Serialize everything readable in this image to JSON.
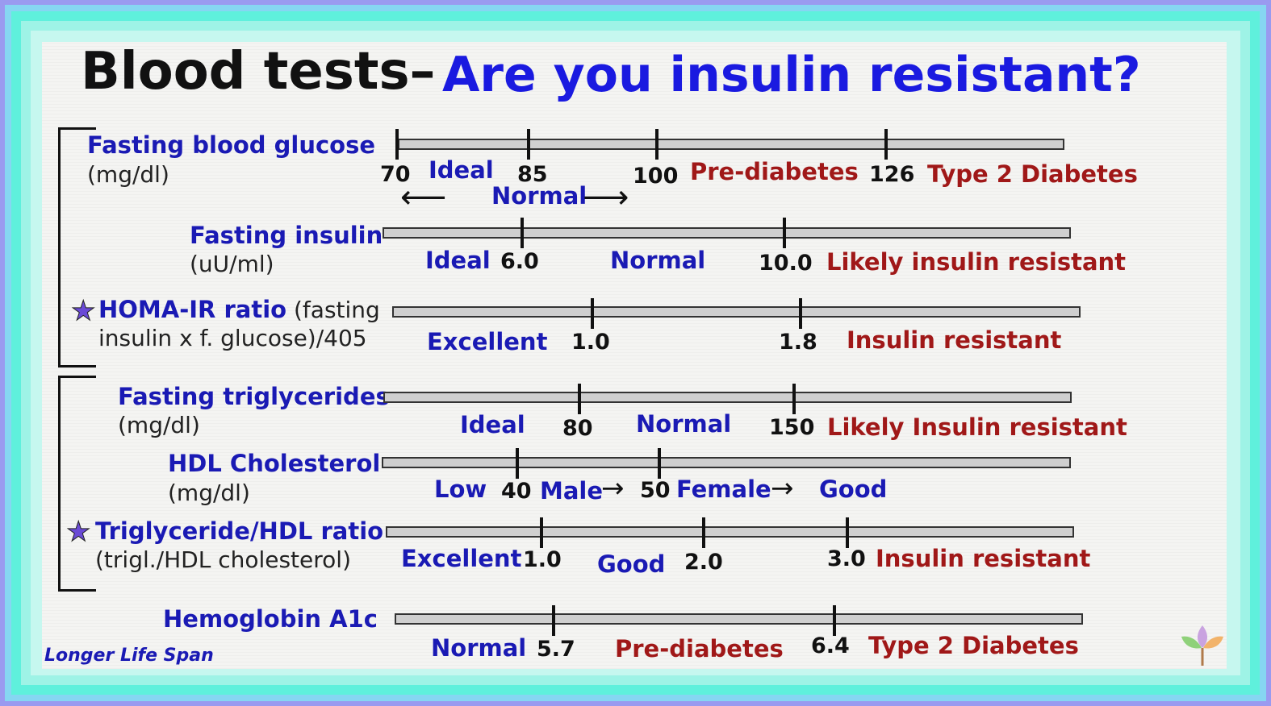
{
  "title": {
    "part1": "Blood tests–",
    "part2": "Are you insulin resistant?"
  },
  "tests": {
    "glucose": {
      "label": "Fasting blood glucose",
      "unit": "(mg/dl)",
      "v1": "70",
      "v2": "85",
      "v3": "100",
      "v4": "126",
      "ideal": "Ideal",
      "normal": "Normal",
      "prediabetes": "Pre-diabetes",
      "t2d": "Type 2 Diabetes"
    },
    "insulin": {
      "label": "Fasting insulin",
      "unit": "(uU/ml)",
      "ideal": "Ideal",
      "v1": "6.0",
      "normal": "Normal",
      "v2": "10.0",
      "resistant": "Likely insulin resistant"
    },
    "homa": {
      "label": "HOMA-IR ratio",
      "label_tail": "(fasting",
      "formula": "insulin x f. glucose)/405",
      "excellent": "Excellent",
      "v1": "1.0",
      "v2": "1.8",
      "resistant": "Insulin resistant"
    },
    "trig": {
      "label": "Fasting triglycerides",
      "unit": "(mg/dl)",
      "ideal": "Ideal",
      "v1": "80",
      "normal": "Normal",
      "v2": "150",
      "resistant": "Likely Insulin resistant"
    },
    "hdl": {
      "label": "HDL Cholesterol",
      "unit": "(mg/dl)",
      "low": "Low",
      "v1": "40",
      "male": "Male",
      "v2": "50",
      "female": "Female",
      "good": "Good"
    },
    "ratio": {
      "label": "Triglyceride/HDL ratio",
      "formula": "(trigl./HDL cholesterol)",
      "excellent": "Excellent",
      "v1": "1.0",
      "good": "Good",
      "v2": "2.0",
      "v3": "3.0",
      "resistant": "Insulin resistant"
    },
    "a1c": {
      "label": "Hemoglobin A1c",
      "normal": "Normal",
      "v1": "5.7",
      "prediabetes": "Pre-diabetes",
      "v2": "6.4",
      "t2d": "Type 2 Diabetes"
    }
  },
  "symbols": {
    "star": "★",
    "arrow_left": "⟵",
    "arrow_right": "⟶",
    "arrow_small": "→"
  },
  "brand": "Longer Life Span",
  "colors": {
    "label_blue": "#1a1ab4",
    "title_blue": "#1a1ae0",
    "risk_red": "#a01818",
    "star": "#6a4ad6"
  }
}
